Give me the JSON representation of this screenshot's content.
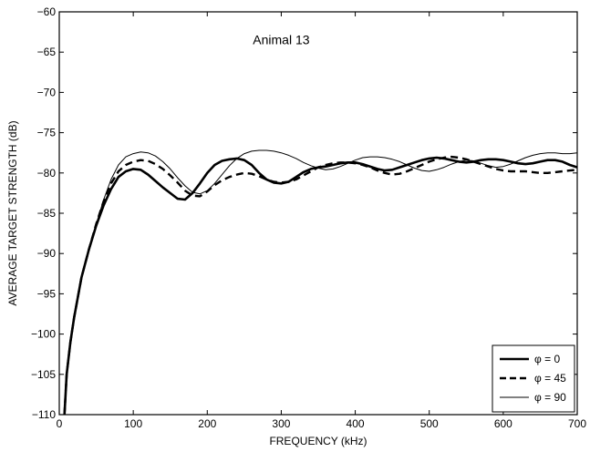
{
  "chart_data": {
    "type": "line",
    "xlabel": "FREQUENCY (kHz)",
    "ylabel": "AVERAGE TARGET STRENGTH (dB)",
    "xlim": [
      0,
      700
    ],
    "ylim": [
      -110,
      -60
    ],
    "xticks": [
      0,
      100,
      200,
      300,
      400,
      500,
      600,
      700
    ],
    "yticks": [
      -110,
      -105,
      -100,
      -95,
      -90,
      -85,
      -80,
      -75,
      -70,
      -65,
      -60
    ],
    "grid": false,
    "legend_position": "bottom-right",
    "annotation": {
      "text": "Animal 13",
      "x": 300,
      "y": -64
    },
    "series": [
      {
        "name": "φ = 0",
        "style": "thick-solid",
        "x": [
          7,
          10,
          15,
          20,
          30,
          40,
          50,
          60,
          70,
          80,
          90,
          100,
          110,
          120,
          130,
          140,
          150,
          160,
          170,
          180,
          190,
          200,
          210,
          220,
          230,
          240,
          250,
          260,
          270,
          280,
          290,
          300,
          310,
          320,
          330,
          340,
          350,
          360,
          370,
          380,
          390,
          400,
          410,
          420,
          430,
          440,
          450,
          460,
          470,
          480,
          490,
          500,
          510,
          520,
          530,
          540,
          550,
          560,
          570,
          580,
          590,
          600,
          610,
          620,
          630,
          640,
          650,
          660,
          670,
          680,
          690,
          700
        ],
        "y": [
          -110,
          -105,
          -101,
          -98,
          -93,
          -89.5,
          -86.5,
          -84,
          -82,
          -80.5,
          -79.8,
          -79.5,
          -79.6,
          -80.2,
          -81,
          -81.8,
          -82.5,
          -83.2,
          -83.3,
          -82.5,
          -81.3,
          -80,
          -79,
          -78.5,
          -78.3,
          -78.2,
          -78.4,
          -79,
          -80,
          -80.8,
          -81.2,
          -81.3,
          -81.1,
          -80.5,
          -79.9,
          -79.5,
          -79.3,
          -79.2,
          -79,
          -78.8,
          -78.7,
          -78.7,
          -78.9,
          -79.2,
          -79.5,
          -79.7,
          -79.6,
          -79.3,
          -79,
          -78.7,
          -78.4,
          -78.2,
          -78.1,
          -78.2,
          -78.4,
          -78.6,
          -78.7,
          -78.6,
          -78.4,
          -78.3,
          -78.3,
          -78.4,
          -78.6,
          -78.8,
          -78.9,
          -78.8,
          -78.6,
          -78.4,
          -78.4,
          -78.6,
          -79,
          -79.3
        ]
      },
      {
        "name": "φ = 45",
        "style": "thick-dashed",
        "x": [
          7,
          10,
          15,
          20,
          30,
          40,
          50,
          60,
          70,
          80,
          90,
          100,
          110,
          120,
          130,
          140,
          150,
          160,
          170,
          180,
          190,
          200,
          210,
          220,
          230,
          240,
          250,
          260,
          270,
          280,
          290,
          300,
          310,
          320,
          330,
          340,
          350,
          360,
          370,
          380,
          390,
          400,
          410,
          420,
          430,
          440,
          450,
          460,
          470,
          480,
          490,
          500,
          510,
          520,
          530,
          540,
          550,
          560,
          570,
          580,
          590,
          600,
          610,
          620,
          630,
          640,
          650,
          660,
          670,
          680,
          690,
          700
        ],
        "y": [
          -110,
          -105,
          -101,
          -98,
          -93,
          -89.5,
          -86.3,
          -83.5,
          -81.3,
          -79.8,
          -79,
          -78.6,
          -78.4,
          -78.5,
          -78.9,
          -79.5,
          -80.3,
          -81.2,
          -82.2,
          -82.8,
          -82.9,
          -82.3,
          -81.5,
          -80.9,
          -80.5,
          -80.2,
          -80,
          -80.1,
          -80.4,
          -80.8,
          -81.1,
          -81.2,
          -81.1,
          -80.8,
          -80.3,
          -79.8,
          -79.3,
          -79,
          -78.8,
          -78.7,
          -78.7,
          -78.8,
          -79,
          -79.3,
          -79.7,
          -80,
          -80.2,
          -80.1,
          -79.8,
          -79.4,
          -79,
          -78.6,
          -78.3,
          -78.1,
          -78,
          -78.1,
          -78.3,
          -78.6,
          -78.9,
          -79.2,
          -79.5,
          -79.7,
          -79.8,
          -79.8,
          -79.8,
          -79.9,
          -80,
          -80,
          -79.9,
          -79.8,
          -79.7,
          -79.6
        ]
      },
      {
        "name": "φ = 90",
        "style": "thin-solid",
        "x": [
          7,
          10,
          15,
          20,
          30,
          40,
          50,
          60,
          70,
          80,
          90,
          100,
          110,
          120,
          130,
          140,
          150,
          160,
          170,
          180,
          190,
          200,
          210,
          220,
          230,
          240,
          250,
          260,
          270,
          280,
          290,
          300,
          310,
          320,
          330,
          340,
          350,
          360,
          370,
          380,
          390,
          400,
          410,
          420,
          430,
          440,
          450,
          460,
          470,
          480,
          490,
          500,
          510,
          520,
          530,
          540,
          550,
          560,
          570,
          580,
          590,
          600,
          610,
          620,
          630,
          640,
          650,
          660,
          670,
          680,
          690,
          700
        ],
        "y": [
          -110,
          -105,
          -101,
          -98,
          -93,
          -89.5,
          -86.3,
          -83.3,
          -80.8,
          -79,
          -78,
          -77.6,
          -77.4,
          -77.5,
          -77.9,
          -78.6,
          -79.5,
          -80.6,
          -81.6,
          -82.4,
          -82.6,
          -82.2,
          -81.3,
          -80.2,
          -79.1,
          -78.2,
          -77.6,
          -77.3,
          -77.2,
          -77.2,
          -77.3,
          -77.5,
          -77.8,
          -78.2,
          -78.7,
          -79.1,
          -79.4,
          -79.6,
          -79.5,
          -79.2,
          -78.8,
          -78.4,
          -78.1,
          -78,
          -78,
          -78.1,
          -78.3,
          -78.6,
          -79,
          -79.4,
          -79.7,
          -79.8,
          -79.6,
          -79.3,
          -78.9,
          -78.6,
          -78.4,
          -78.5,
          -78.8,
          -79.1,
          -79.3,
          -79.2,
          -78.9,
          -78.5,
          -78.1,
          -77.8,
          -77.6,
          -77.5,
          -77.5,
          -77.6,
          -77.6,
          -77.5
        ]
      }
    ]
  }
}
